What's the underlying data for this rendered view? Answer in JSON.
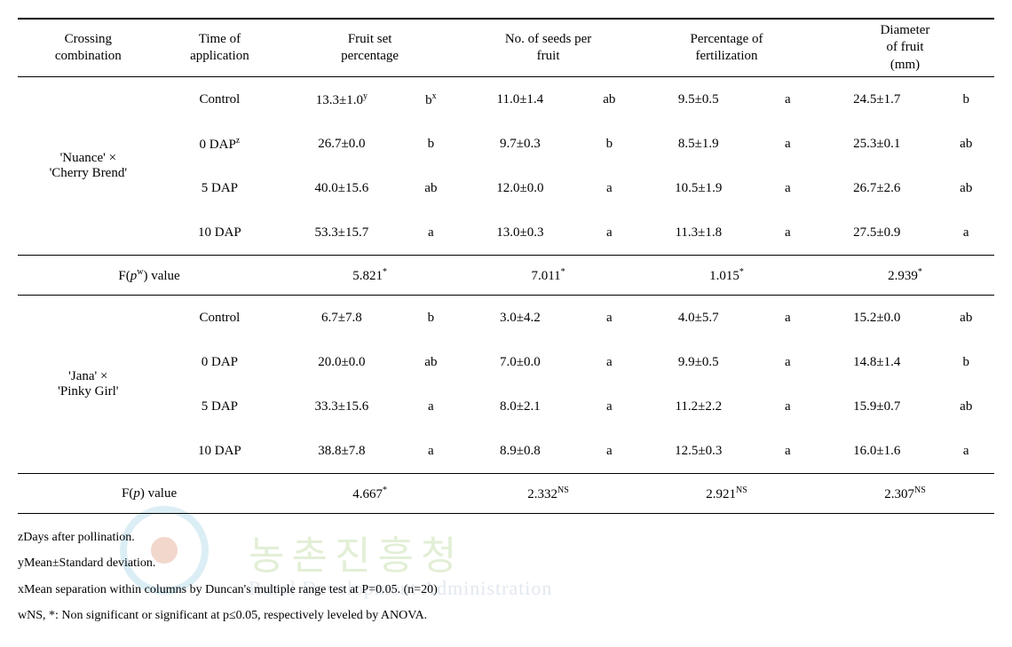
{
  "headers": {
    "c1": "Crossing\ncombination",
    "c2": "Time of\napplication",
    "c3": "Fruit set\npercentage",
    "c4": "No. of seeds per\nfruit",
    "c5": "Percentage of\nfertilization",
    "c6": "Diameter\nof fruit\n(mm)"
  },
  "groups": [
    {
      "name": "'Nuance' ×\n'Cherry Brend'",
      "rows": [
        {
          "time": "Control",
          "fs": "13.3±1.0",
          "fs_sup": "y",
          "fs_sig": "b",
          "fs_sig_sup": "x",
          "seeds": "11.0±1.4",
          "seeds_sig": "ab",
          "pf": "9.5±0.5",
          "pf_sig": "a",
          "dia": "24.5±1.7",
          "dia_sig": "b"
        },
        {
          "time": "0 DAP",
          "time_sup": "z",
          "fs": "26.7±0.0",
          "fs_sig": "b",
          "seeds": "9.7±0.3",
          "seeds_sig": "b",
          "pf": "8.5±1.9",
          "pf_sig": "a",
          "dia": "25.3±0.1",
          "dia_sig": "ab"
        },
        {
          "time": "5 DAP",
          "fs": "40.0±15.6",
          "fs_sig": "ab",
          "seeds": "12.0±0.0",
          "seeds_sig": "a",
          "pf": "10.5±1.9",
          "pf_sig": "a",
          "dia": "26.7±2.6",
          "dia_sig": "ab"
        },
        {
          "time": "10 DAP",
          "fs": "53.3±15.7",
          "fs_sig": "a",
          "seeds": "13.0±0.3",
          "seeds_sig": "a",
          "pf": "11.3±1.8",
          "pf_sig": "a",
          "dia": "27.5±0.9",
          "dia_sig": "a"
        }
      ],
      "fp": {
        "label_prefix": "F(",
        "label_mid": "p",
        "label_sup": "w",
        "label_suffix": ") value",
        "fs": "5.821",
        "fs_sup": "*",
        "seeds": "7.011",
        "seeds_sup": "*",
        "pf": "1.015",
        "pf_sup": "*",
        "dia": "2.939",
        "dia_sup": "*"
      }
    },
    {
      "name": "'Jana' ×\n'Pinky Girl'",
      "rows": [
        {
          "time": "Control",
          "fs": "6.7±7.8",
          "fs_sig": "b",
          "seeds": "3.0±4.2",
          "seeds_sig": "a",
          "pf": "4.0±5.7",
          "pf_sig": "a",
          "dia": "15.2±0.0",
          "dia_sig": "ab"
        },
        {
          "time": "0 DAP",
          "fs": "20.0±0.0",
          "fs_sig": "ab",
          "seeds": "7.0±0.0",
          "seeds_sig": "a",
          "pf": "9.9±0.5",
          "pf_sig": "a",
          "dia": "14.8±1.4",
          "dia_sig": "b"
        },
        {
          "time": "5 DAP",
          "fs": "33.3±15.6",
          "fs_sig": "a",
          "seeds": "8.0±2.1",
          "seeds_sig": "a",
          "pf": "11.2±2.2",
          "pf_sig": "a",
          "dia": "15.9±0.7",
          "dia_sig": "ab"
        },
        {
          "time": "10 DAP",
          "fs": "38.8±7.8",
          "fs_sig": "a",
          "seeds": "8.9±0.8",
          "seeds_sig": "a",
          "pf": "12.5±0.3",
          "pf_sig": "a",
          "dia": "16.0±1.6",
          "dia_sig": "a"
        }
      ],
      "fp": {
        "label_prefix": "F(",
        "label_mid": "p",
        "label_suffix": ") value",
        "fs": "4.667",
        "fs_sup": "*",
        "seeds": "2.332",
        "seeds_sup": "NS",
        "pf": "2.921",
        "pf_sup": "NS",
        "dia": "2.307",
        "dia_sup": "NS"
      }
    }
  ],
  "footnotes": {
    "z": "zDays after pollination.",
    "y": "yMean±Standard deviation.",
    "x": "xMean separation within columns by Duncan's multiple range test at P=0.05. (n=20)",
    "w": "wNS, *: Non significant or significant at p≤0.05, respectively leveled by ANOVA."
  },
  "watermark": {
    "kr": "농촌진흥청",
    "en": "Rural Development Administration"
  },
  "colors": {
    "text": "#000000",
    "bg": "#ffffff",
    "wm_ring": "#dceef5",
    "wm_dot": "#f2d7cc",
    "wm_kr": "#e2efd6",
    "wm_en": "#e2e8f0"
  },
  "col_widths": {
    "c1": 150,
    "c2": 130,
    "val": 130,
    "sig": 60
  }
}
